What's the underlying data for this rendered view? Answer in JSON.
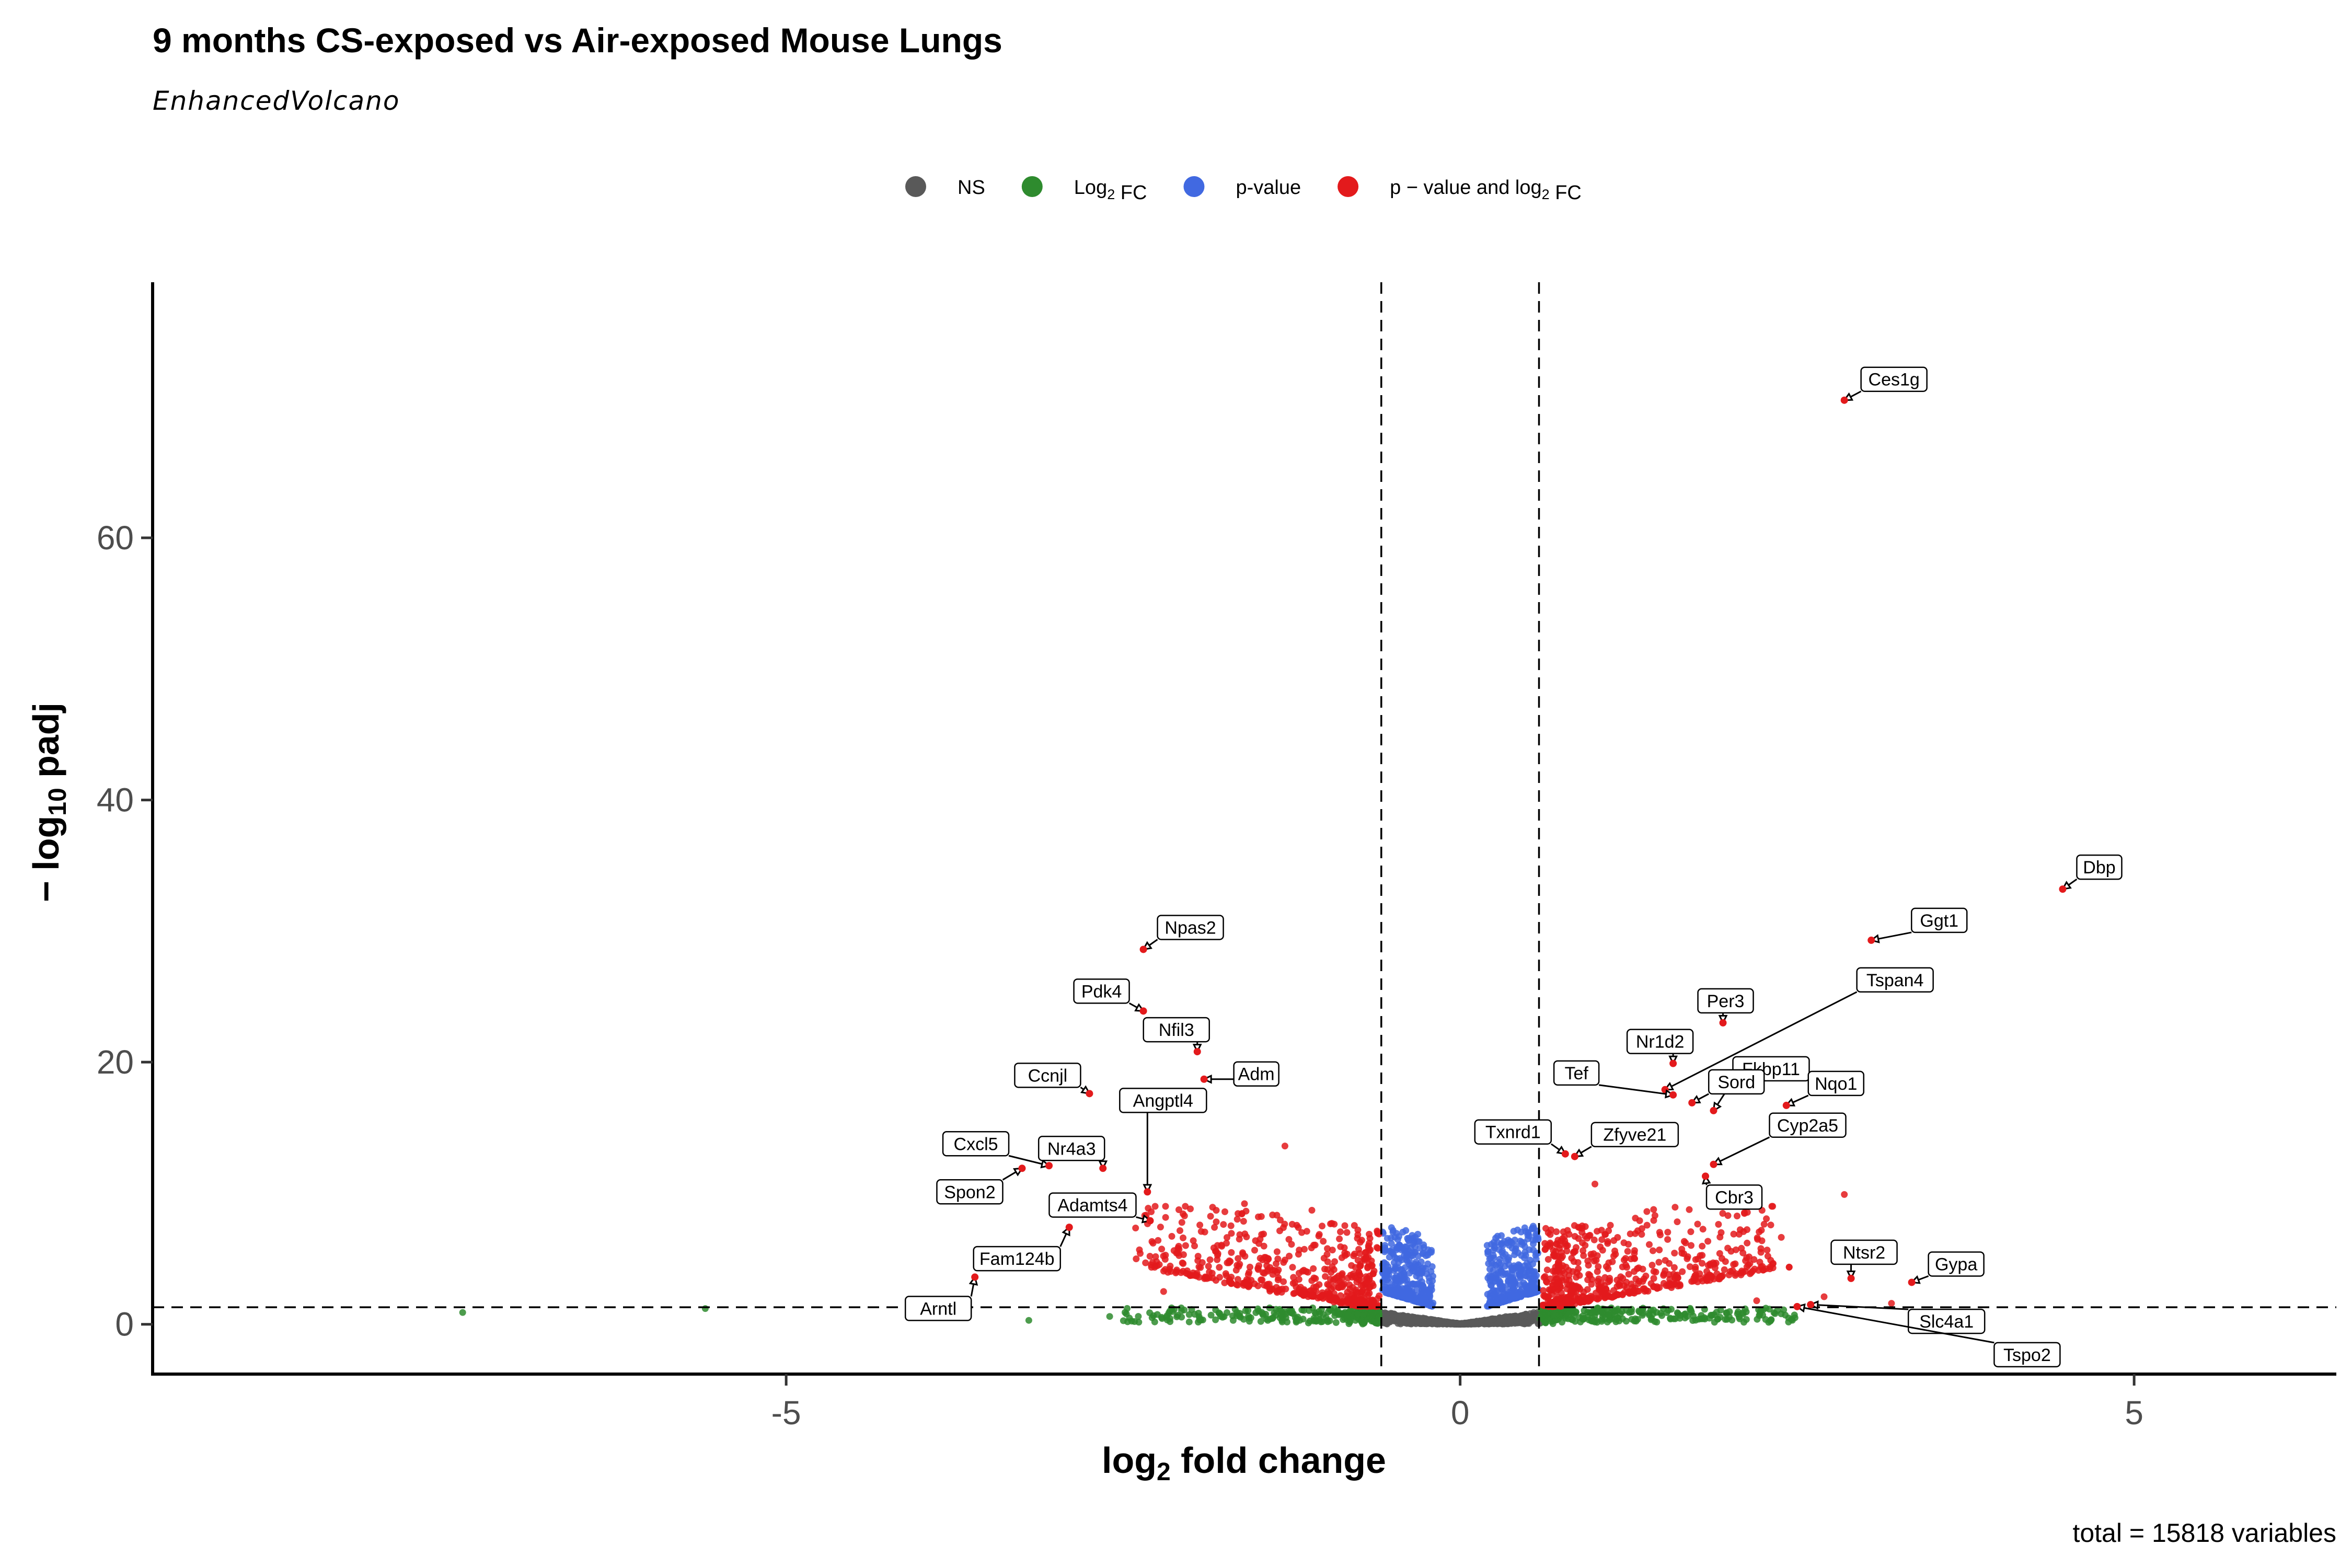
{
  "chart_data": {
    "type": "scatter",
    "title": "9 months CS-exposed vs Air-exposed Mouse Lungs",
    "subtitle": "EnhancedVolcano",
    "xlabel_main": "log",
    "xlabel_sub": "2",
    "xlabel_tail": " fold change",
    "ylabel_prefix": "− log",
    "ylabel_sub": "10",
    "ylabel_tail": " padj",
    "caption": "total = 15818 variables",
    "xlim": [
      -9.7,
      6.5
    ],
    "ylim": [
      -3.8,
      79.5
    ],
    "x_ticks": [
      -5,
      0,
      5
    ],
    "x_tick_labels": [
      "-5",
      "0",
      "5"
    ],
    "y_ticks": [
      0,
      20,
      40,
      60
    ],
    "y_tick_labels": [
      "0",
      "20",
      "40",
      "60"
    ],
    "fc_cutoff": 0.585,
    "p_cutoff_log10": 1.3,
    "grid": false,
    "legend_position": "top",
    "legend": [
      {
        "key": "NS",
        "parts": [
          {
            "t": "NS"
          }
        ],
        "color": "#595959"
      },
      {
        "key": "FC",
        "parts": [
          {
            "t": "Log"
          },
          {
            "t": "2",
            "sub": true
          },
          {
            "t": " FC"
          }
        ],
        "color": "#2e8b2e"
      },
      {
        "key": "P",
        "parts": [
          {
            "t": "p-value"
          }
        ],
        "color": "#4169e1"
      },
      {
        "key": "PFC",
        "parts": [
          {
            "t": "p − value and log"
          },
          {
            "t": "2",
            "sub": true
          },
          {
            "t": " FC"
          }
        ],
        "color": "#e31a1c"
      }
    ],
    "colors": {
      "NS": "#595959",
      "FC": "#2e8b2e",
      "P": "#4169e1",
      "PFC": "#e31a1c"
    },
    "labeled_points": [
      {
        "gene": "Ces1g",
        "x": 2.85,
        "y": 70.5
      },
      {
        "gene": "Dbp",
        "x": 4.47,
        "y": 33.2
      },
      {
        "gene": "Ggt1",
        "x": 3.05,
        "y": 29.3
      },
      {
        "gene": "Npas2",
        "x": -2.35,
        "y": 28.6
      },
      {
        "gene": "Pdk4",
        "x": -2.35,
        "y": 23.9
      },
      {
        "gene": "Per3",
        "x": 1.95,
        "y": 23.0
      },
      {
        "gene": "Nfil3",
        "x": -1.95,
        "y": 20.8
      },
      {
        "gene": "Nr1d2",
        "x": 1.58,
        "y": 19.9
      },
      {
        "gene": "Fkbp11",
        "x": 1.88,
        "y": 16.3
      },
      {
        "gene": "Tspan4",
        "x": 1.52,
        "y": 17.9
      },
      {
        "gene": "Adm",
        "x": -1.9,
        "y": 18.7
      },
      {
        "gene": "Ccnjl",
        "x": -2.75,
        "y": 17.6
      },
      {
        "gene": "Tef",
        "x": 1.58,
        "y": 17.5
      },
      {
        "gene": "Sord",
        "x": 1.72,
        "y": 16.9
      },
      {
        "gene": "Nqo1",
        "x": 2.42,
        "y": 16.7
      },
      {
        "gene": "Angptl4",
        "x": -2.32,
        "y": 10.1
      },
      {
        "gene": "Txnrd1",
        "x": 0.78,
        "y": 13.0
      },
      {
        "gene": "Zfyve21",
        "x": 0.85,
        "y": 12.8
      },
      {
        "gene": "Cyp2a5",
        "x": 1.88,
        "y": 12.2
      },
      {
        "gene": "Cxcl5",
        "x": -3.05,
        "y": 12.1
      },
      {
        "gene": "Nr4a3",
        "x": -2.65,
        "y": 11.9
      },
      {
        "gene": "Spon2",
        "x": -3.25,
        "y": 11.9
      },
      {
        "gene": "Cbr3",
        "x": 1.82,
        "y": 11.3
      },
      {
        "gene": "Adamts4",
        "x": -2.3,
        "y": 7.9
      },
      {
        "gene": "Fam124b",
        "x": -2.9,
        "y": 7.4
      },
      {
        "gene": "Ntsr2",
        "x": 2.9,
        "y": 3.5
      },
      {
        "gene": "Gypa",
        "x": 3.35,
        "y": 3.2
      },
      {
        "gene": "Arntl",
        "x": -3.6,
        "y": 3.6
      },
      {
        "gene": "Slc4a1",
        "x": 2.6,
        "y": 1.5
      },
      {
        "gene": "Tspo2",
        "x": 2.5,
        "y": 1.35
      }
    ]
  }
}
